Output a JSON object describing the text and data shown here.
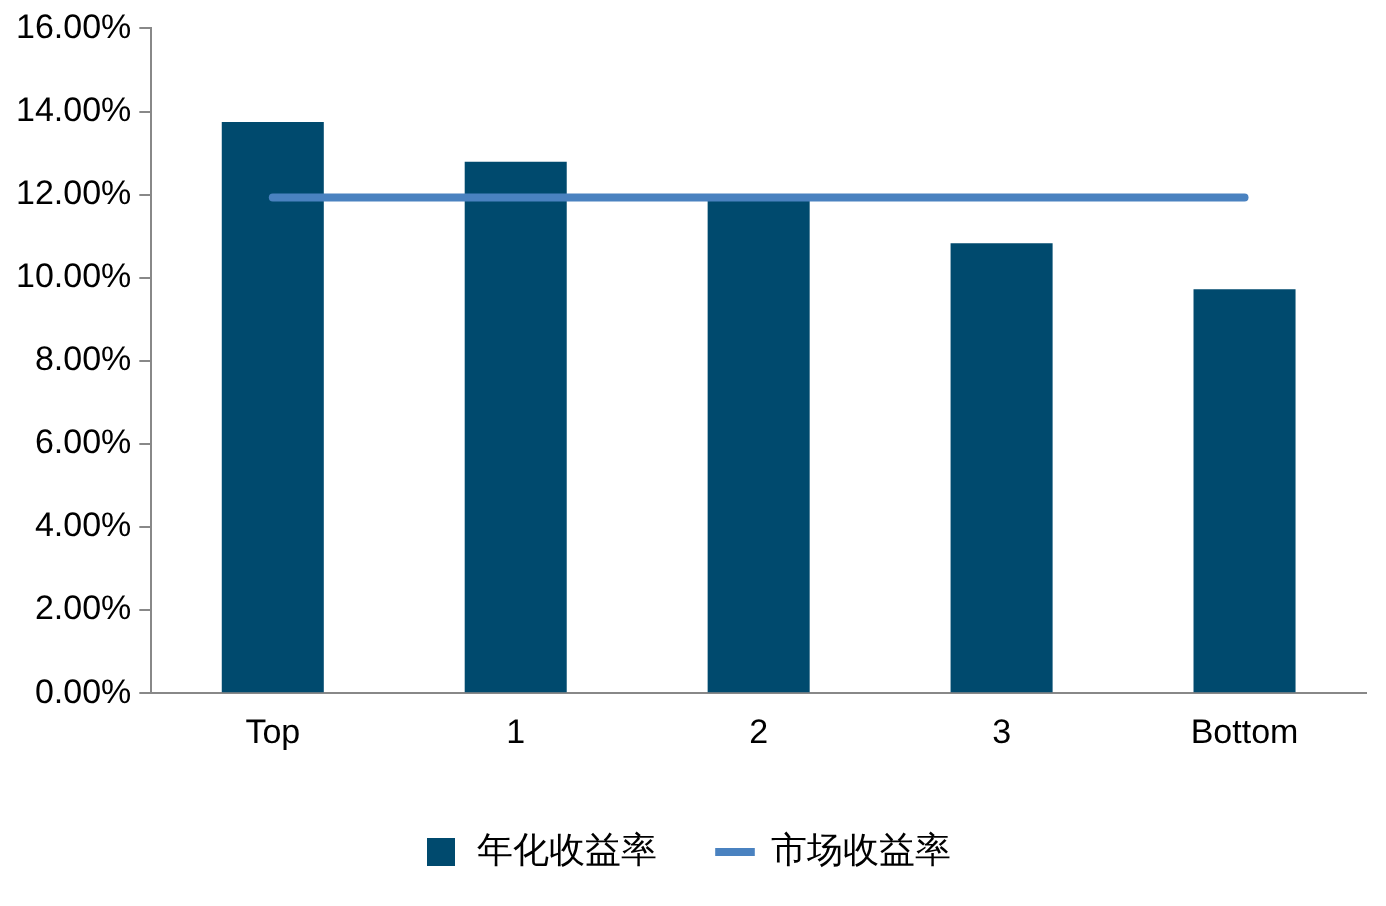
{
  "chart_data": {
    "type": "bar",
    "categories": [
      "Top",
      "1",
      "2",
      "3",
      "Bottom"
    ],
    "series": [
      {
        "name": "年化收益率",
        "color": "#004a6e",
        "values": [
          13.75,
          12.79,
          11.98,
          10.83,
          9.72
        ]
      },
      {
        "name": "市场收益率",
        "type": "line",
        "color": "#4a82c0",
        "values": [
          11.93,
          11.93,
          11.93,
          11.93,
          11.93
        ]
      }
    ],
    "ylim": [
      0,
      16
    ],
    "yticks": [
      {
        "value": 0,
        "label": "0.00%"
      },
      {
        "value": 2,
        "label": "2.00%"
      },
      {
        "value": 4,
        "label": "4.00%"
      },
      {
        "value": 6,
        "label": "6.00%"
      },
      {
        "value": 8,
        "label": "8.00%"
      },
      {
        "value": 10,
        "label": "10.00%"
      },
      {
        "value": 12,
        "label": "12.00%"
      },
      {
        "value": 14,
        "label": "14.00%"
      },
      {
        "value": 16,
        "label": "16.00%"
      }
    ],
    "grid": false,
    "legend": "bottom",
    "marker": "none",
    "line_style": "solid"
  }
}
